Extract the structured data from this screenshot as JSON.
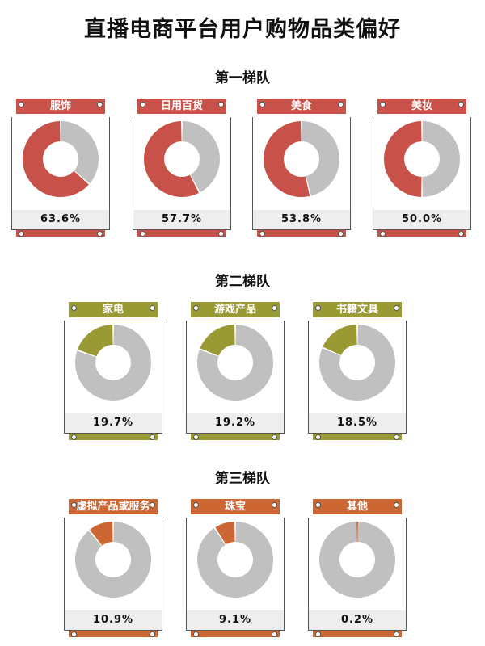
{
  "title": "直播电商平台用户购物品类偏好",
  "chart_data": {
    "type": "pie",
    "title": "直播电商平台用户购物品类偏好",
    "tiers": [
      {
        "name": "第一梯队",
        "color": "#c8524a",
        "items": [
          {
            "label": "服饰",
            "value": 63.6,
            "text": "63.6%"
          },
          {
            "label": "日用百货",
            "value": 57.7,
            "text": "57.7%"
          },
          {
            "label": "美食",
            "value": 53.8,
            "text": "53.8%"
          },
          {
            "label": "美妆",
            "value": 50.0,
            "text": "50.0%"
          }
        ]
      },
      {
        "name": "第二梯队",
        "color": "#9a9a35",
        "items": [
          {
            "label": "家电",
            "value": 19.7,
            "text": "19.7%"
          },
          {
            "label": "游戏产品",
            "value": 19.2,
            "text": "19.2%"
          },
          {
            "label": "书籍文具",
            "value": 18.5,
            "text": "18.5%"
          }
        ]
      },
      {
        "name": "第三梯队",
        "color": "#cc6633",
        "items": [
          {
            "label": "虚拟产品或服务",
            "value": 10.9,
            "text": "10.9%"
          },
          {
            "label": "珠宝",
            "value": 9.1,
            "text": "9.1%"
          },
          {
            "label": "其他",
            "value": 0.2,
            "text": "0.2%"
          }
        ]
      }
    ],
    "remainder_color": "#c0c0c0"
  }
}
